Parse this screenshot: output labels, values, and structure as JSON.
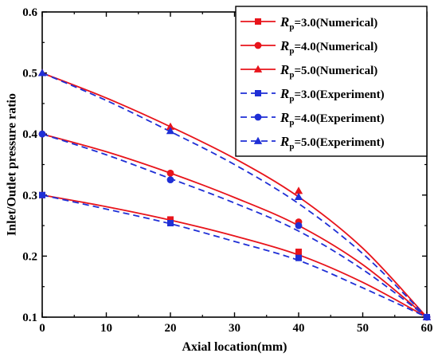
{
  "chart_data": {
    "type": "line",
    "xlabel": "Axial location(mm)",
    "ylabel": "Inlet/Outlet pressure ratio",
    "xlim": [
      0,
      60
    ],
    "ylim": [
      0.1,
      0.6
    ],
    "xticks": [
      0,
      10,
      20,
      30,
      40,
      50,
      60
    ],
    "yticks": [
      0.1,
      0.2,
      0.3,
      0.4,
      0.5,
      0.6
    ],
    "xtick_labels": [
      "0",
      "10",
      "20",
      "30",
      "40",
      "50",
      "60"
    ],
    "ytick_labels": [
      "0.1",
      "0.2",
      "0.3",
      "0.4",
      "0.5",
      "0.6"
    ],
    "grid": false,
    "legend": {
      "position": "top-right"
    },
    "series": [
      {
        "legend_symbol": "R",
        "legend_sub": "p",
        "legend_rest": "=3.0(Numerical)",
        "style": "solid",
        "marker": "square",
        "color": "#e8141b",
        "points": {
          "x": [
            0,
            20,
            40,
            60
          ],
          "y": [
            0.3,
            0.26,
            0.207,
            0.1
          ]
        },
        "curve": {
          "x": [
            0,
            10,
            20,
            30,
            40,
            50,
            60
          ],
          "y": [
            0.3,
            0.281,
            0.259,
            0.233,
            0.202,
            0.157,
            0.1
          ]
        }
      },
      {
        "legend_symbol": "R",
        "legend_sub": "p",
        "legend_rest": "=4.0(Numerical)",
        "style": "solid",
        "marker": "circle",
        "color": "#e8141b",
        "points": {
          "x": [
            0,
            20,
            40,
            60
          ],
          "y": [
            0.4,
            0.336,
            0.256,
            0.1
          ]
        },
        "curve": {
          "x": [
            0,
            10,
            20,
            30,
            40,
            50,
            60
          ],
          "y": [
            0.4,
            0.371,
            0.336,
            0.296,
            0.25,
            0.186,
            0.1
          ]
        }
      },
      {
        "legend_symbol": "R",
        "legend_sub": "p",
        "legend_rest": "=5.0(Numerical)",
        "style": "solid",
        "marker": "triangle",
        "color": "#e8141b",
        "points": {
          "x": [
            0,
            20,
            40,
            60
          ],
          "y": [
            0.5,
            0.412,
            0.307,
            0.1
          ]
        },
        "curve": {
          "x": [
            0,
            10,
            20,
            30,
            40,
            50,
            60
          ],
          "y": [
            0.5,
            0.459,
            0.412,
            0.36,
            0.297,
            0.213,
            0.1
          ]
        }
      },
      {
        "legend_symbol": "R",
        "legend_sub": "p",
        "legend_rest": "=3.0(Experiment)",
        "style": "dashed",
        "marker": "square",
        "color": "#1f2fd6",
        "points": {
          "x": [
            0,
            20,
            40,
            60
          ],
          "y": [
            0.3,
            0.254,
            0.197,
            0.1
          ]
        },
        "curve": {
          "x": [
            0,
            10,
            20,
            30,
            40,
            50,
            60
          ],
          "y": [
            0.3,
            0.277,
            0.253,
            0.224,
            0.193,
            0.148,
            0.1
          ]
        }
      },
      {
        "legend_symbol": "R",
        "legend_sub": "p",
        "legend_rest": "=4.0(Experiment)",
        "style": "dashed",
        "marker": "circle",
        "color": "#1f2fd6",
        "points": {
          "x": [
            0,
            20,
            40,
            60
          ],
          "y": [
            0.4,
            0.325,
            0.25,
            0.1
          ]
        },
        "curve": {
          "x": [
            0,
            10,
            20,
            30,
            40,
            50,
            60
          ],
          "y": [
            0.4,
            0.366,
            0.327,
            0.287,
            0.241,
            0.178,
            0.1
          ]
        }
      },
      {
        "legend_symbol": "R",
        "legend_sub": "p",
        "legend_rest": "=5.0(Experiment)",
        "style": "dashed",
        "marker": "triangle",
        "color": "#1f2fd6",
        "points": {
          "x": [
            0,
            20,
            40,
            60
          ],
          "y": [
            0.5,
            0.405,
            0.297,
            0.1
          ]
        },
        "curve": {
          "x": [
            0,
            10,
            20,
            30,
            40,
            50,
            60
          ],
          "y": [
            0.5,
            0.455,
            0.404,
            0.35,
            0.286,
            0.204,
            0.1
          ]
        }
      }
    ]
  }
}
